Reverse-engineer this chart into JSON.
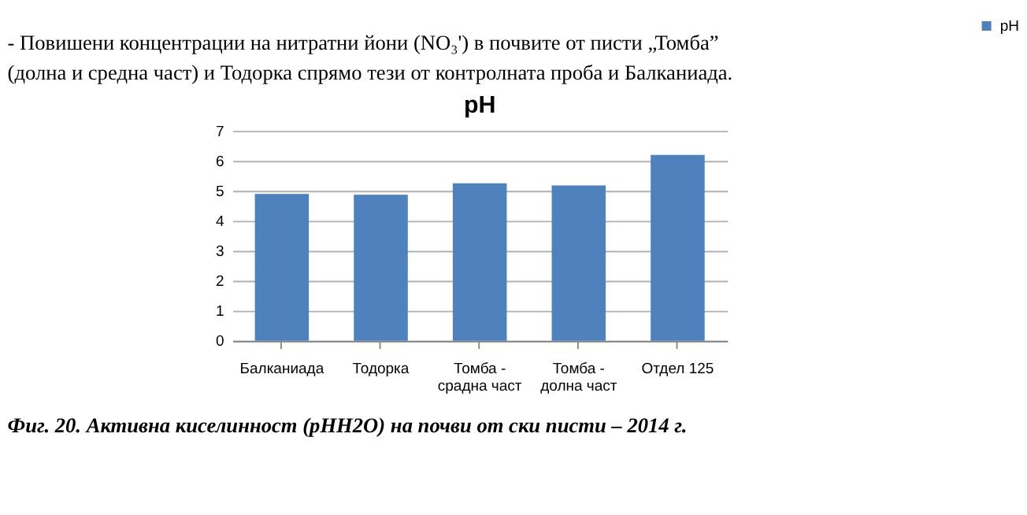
{
  "chart_data": {
    "type": "bar",
    "title": "pH",
    "categories": [
      "Балканиада",
      "Тодорка",
      "Томба - срадна част",
      "Томба - долна част",
      "Отдел 125"
    ],
    "series": [
      {
        "name": "pH",
        "color": "#4f81bd",
        "values": [
          4.9,
          4.87,
          5.25,
          5.18,
          6.2
        ]
      }
    ],
    "ylim": [
      0,
      7
    ],
    "yticks": [
      0,
      1,
      2,
      3,
      4,
      5,
      6,
      7
    ],
    "grid": "y",
    "legend": "right",
    "annotations": [
      "-                Повишени концентрации на нитратни йони (NO₃') в почвите от писти „Томба”",
      "(долна и средна част) и Тодорка спрямо тези от контролната проба и Балканиада.",
      "Фиг. 20. Активна киселинност (pHH2O) на почви от ски писти – 2014 г."
    ]
  }
}
